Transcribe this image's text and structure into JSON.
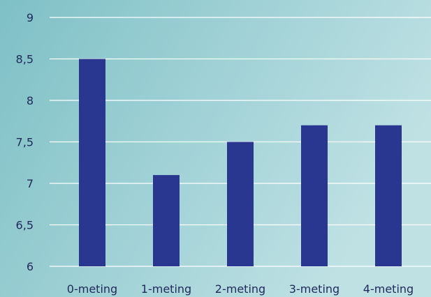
{
  "chart_data": {
    "type": "bar",
    "categories": [
      "0-meting",
      "1-meting",
      "2-meting",
      "3-meting",
      "4-meting"
    ],
    "values": [
      8.5,
      7.1,
      7.5,
      7.7,
      7.7
    ],
    "ylim": [
      6,
      9
    ],
    "yticks": [
      "6",
      "6,5",
      "7",
      "7,5",
      "8",
      "8,5",
      "9"
    ],
    "ytick_values": [
      6,
      6.5,
      7,
      7.5,
      8,
      8.5,
      9
    ],
    "grid": true,
    "bar_color": "#2a3790",
    "grid_color": "#ffffff",
    "background_gradient": [
      "#7ec0c6",
      "#bfe1e4"
    ],
    "text_color": "#1f2a5a"
  }
}
